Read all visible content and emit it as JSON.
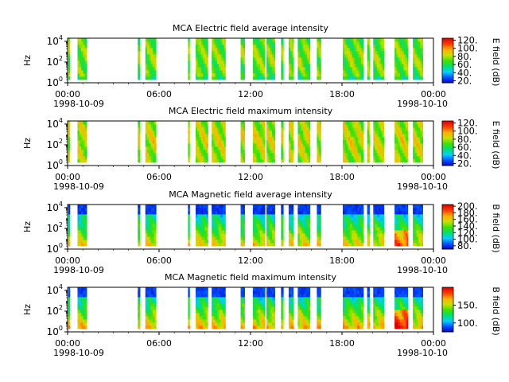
{
  "figure": {
    "date_start": "1998-10-09",
    "date_end": "1998-10-10",
    "time_ticks": [
      "00:00",
      "06:00",
      "12:00",
      "18:00",
      "00:00"
    ],
    "ylabel": "Hz",
    "ytick_mantissa": "10",
    "ytick_exponents": [
      "0",
      "2",
      "4"
    ]
  },
  "chart_data": [
    {
      "type": "heatmap",
      "title": "MCA  Electric field average intensity",
      "ylabel": "Hz",
      "ylim": [
        1,
        20000
      ],
      "y_scale": "log",
      "xlim": [
        "1998-10-09 00:00",
        "1998-10-10 00:00"
      ],
      "colorbar_label": "E field (dB)",
      "colorbar_ticks": [
        "120.",
        "100.",
        "80.",
        "60.",
        "40.",
        "20."
      ],
      "colorbar_range": [
        15,
        125
      ],
      "colormap": "rainbow",
      "colors": [
        "#0000c8",
        "#0050ff",
        "#00d0ff",
        "#00e070",
        "#40e000",
        "#c8e000",
        "#ffb000",
        "#ff4000",
        "#e00000"
      ],
      "data_intervals_hours": [
        [
          0.05,
          0.15
        ],
        [
          0.65,
          1.25
        ],
        [
          4.6,
          4.75
        ],
        [
          5.1,
          5.8
        ],
        [
          7.9,
          8.0
        ],
        [
          8.4,
          9.2
        ],
        [
          9.45,
          10.35
        ],
        [
          11.35,
          11.6
        ],
        [
          12.15,
          12.95
        ],
        [
          13.05,
          13.6
        ],
        [
          14.0,
          14.15
        ],
        [
          14.5,
          14.8
        ],
        [
          15.1,
          15.9
        ],
        [
          16.35,
          16.6
        ],
        [
          18.05,
          19.4
        ],
        [
          19.65,
          19.8
        ],
        [
          20.05,
          20.75
        ],
        [
          21.45,
          22.3
        ],
        [
          22.65,
          23.3
        ]
      ],
      "level": "medium"
    },
    {
      "type": "heatmap",
      "title": "MCA  Electric field maximum intensity",
      "ylabel": "Hz",
      "ylim": [
        1,
        20000
      ],
      "y_scale": "log",
      "xlim": [
        "1998-10-09 00:00",
        "1998-10-10 00:00"
      ],
      "colorbar_label": "E field (dB)",
      "colorbar_ticks": [
        "120.",
        "100.",
        "80.",
        "60.",
        "40.",
        "20."
      ],
      "colorbar_range": [
        15,
        125
      ],
      "colormap": "rainbow",
      "colors": [
        "#0000c8",
        "#0050ff",
        "#00d0ff",
        "#00e070",
        "#40e000",
        "#c8e000",
        "#ffb000",
        "#ff4000",
        "#e00000"
      ],
      "data_intervals_hours": [
        [
          0.05,
          0.15
        ],
        [
          0.65,
          1.25
        ],
        [
          4.6,
          4.75
        ],
        [
          5.1,
          5.8
        ],
        [
          7.9,
          8.0
        ],
        [
          8.4,
          9.2
        ],
        [
          9.45,
          10.35
        ],
        [
          11.35,
          11.6
        ],
        [
          12.15,
          12.95
        ],
        [
          13.05,
          13.6
        ],
        [
          14.0,
          14.15
        ],
        [
          14.5,
          14.8
        ],
        [
          15.1,
          15.9
        ],
        [
          16.35,
          16.6
        ],
        [
          18.05,
          19.4
        ],
        [
          19.65,
          19.8
        ],
        [
          20.05,
          20.75
        ],
        [
          21.45,
          22.3
        ],
        [
          22.65,
          23.3
        ]
      ],
      "level": "high"
    },
    {
      "type": "heatmap",
      "title": "MCA  Magnetic field average intensity",
      "ylabel": "Hz",
      "ylim": [
        1,
        20000
      ],
      "y_scale": "log",
      "xlim": [
        "1998-10-09 00:00",
        "1998-10-10 00:00"
      ],
      "colorbar_label": "B field (dB)",
      "colorbar_ticks": [
        "200.",
        "180.",
        "160.",
        "140.",
        "120.",
        "100.",
        "80."
      ],
      "colorbar_range": [
        70,
        205
      ],
      "colormap": "rainbow",
      "colors": [
        "#0000c8",
        "#0050ff",
        "#00d0ff",
        "#00e070",
        "#40e000",
        "#c8e000",
        "#ffb000",
        "#ff4000",
        "#e00000"
      ],
      "data_intervals_hours": [
        [
          0.05,
          0.15
        ],
        [
          0.65,
          1.25
        ],
        [
          4.6,
          4.75
        ],
        [
          5.1,
          5.8
        ],
        [
          7.9,
          8.0
        ],
        [
          8.4,
          9.2
        ],
        [
          9.45,
          10.35
        ],
        [
          11.35,
          11.6
        ],
        [
          12.15,
          12.95
        ],
        [
          13.05,
          13.6
        ],
        [
          14.0,
          14.15
        ],
        [
          14.5,
          14.8
        ],
        [
          15.1,
          15.9
        ],
        [
          16.35,
          16.6
        ],
        [
          18.05,
          19.4
        ],
        [
          19.65,
          19.8
        ],
        [
          20.05,
          20.75
        ],
        [
          21.45,
          22.3
        ],
        [
          22.65,
          23.3
        ]
      ],
      "level": "magnetic"
    },
    {
      "type": "heatmap",
      "title": "MCA  Magnetic field maximum intensity",
      "ylabel": "Hz",
      "ylim": [
        1,
        20000
      ],
      "y_scale": "log",
      "xlim": [
        "1998-10-09 00:00",
        "1998-10-10 00:00"
      ],
      "colorbar_label": "B field (dB)",
      "colorbar_ticks": [
        "150.",
        "100."
      ],
      "colorbar_range": [
        75,
        200
      ],
      "colormap": "rainbow",
      "colors": [
        "#0000c8",
        "#0050ff",
        "#00d0ff",
        "#00e070",
        "#40e000",
        "#c8e000",
        "#ffb000",
        "#ff4000",
        "#e00000"
      ],
      "data_intervals_hours": [
        [
          0.05,
          0.15
        ],
        [
          0.65,
          1.25
        ],
        [
          4.6,
          4.75
        ],
        [
          5.1,
          5.8
        ],
        [
          7.9,
          8.0
        ],
        [
          8.4,
          9.2
        ],
        [
          9.45,
          10.35
        ],
        [
          11.35,
          11.6
        ],
        [
          12.15,
          12.95
        ],
        [
          13.05,
          13.6
        ],
        [
          14.0,
          14.15
        ],
        [
          14.5,
          14.8
        ],
        [
          15.1,
          15.9
        ],
        [
          16.35,
          16.6
        ],
        [
          18.05,
          19.4
        ],
        [
          19.65,
          19.8
        ],
        [
          20.05,
          20.75
        ],
        [
          21.45,
          22.3
        ],
        [
          22.65,
          23.3
        ]
      ],
      "level": "magnetic-max"
    }
  ]
}
